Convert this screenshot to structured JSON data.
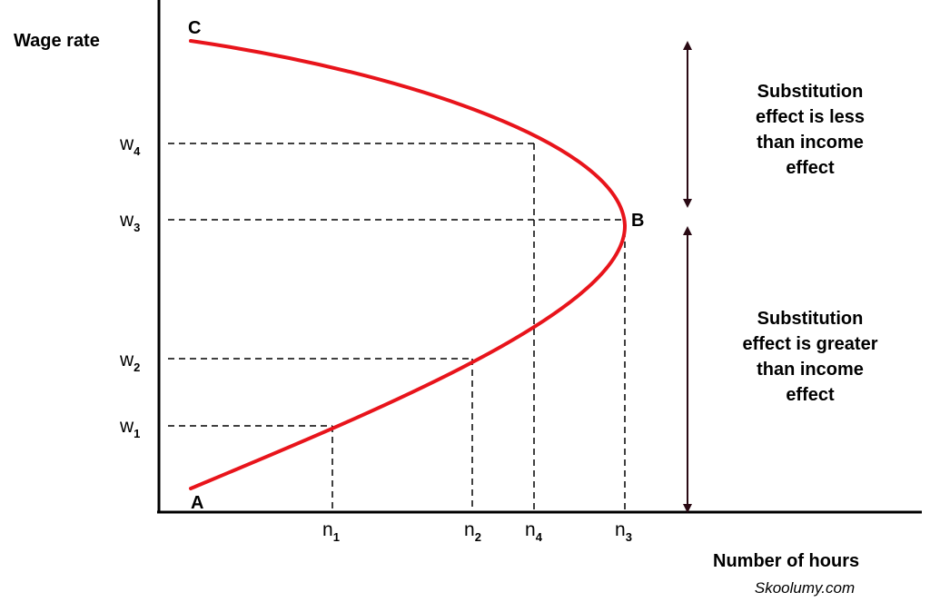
{
  "axes": {
    "y_label": "Wage rate",
    "x_label": "Number of hours"
  },
  "points": {
    "c": "C",
    "b": "B",
    "a": "A"
  },
  "y_ticks": [
    {
      "base": "w",
      "sub": "4"
    },
    {
      "base": "w",
      "sub": "3"
    },
    {
      "base": "w",
      "sub": "2"
    },
    {
      "base": "w",
      "sub": "1"
    }
  ],
  "x_ticks": [
    {
      "base": "n",
      "sub": "1"
    },
    {
      "base": "n",
      "sub": "2"
    },
    {
      "base": "n",
      "sub": "4"
    },
    {
      "base": "n",
      "sub": "3"
    }
  ],
  "notes": {
    "upper": [
      "Substitution",
      "effect is less",
      "than income",
      "effect"
    ],
    "lower": [
      "Substitution",
      "effect is greater",
      "than income",
      "effect"
    ]
  },
  "credit": "Skoolumy.com",
  "colors": {
    "curve": "#e8141b",
    "ink": "#000000",
    "arrow": "#2a0a14"
  }
}
